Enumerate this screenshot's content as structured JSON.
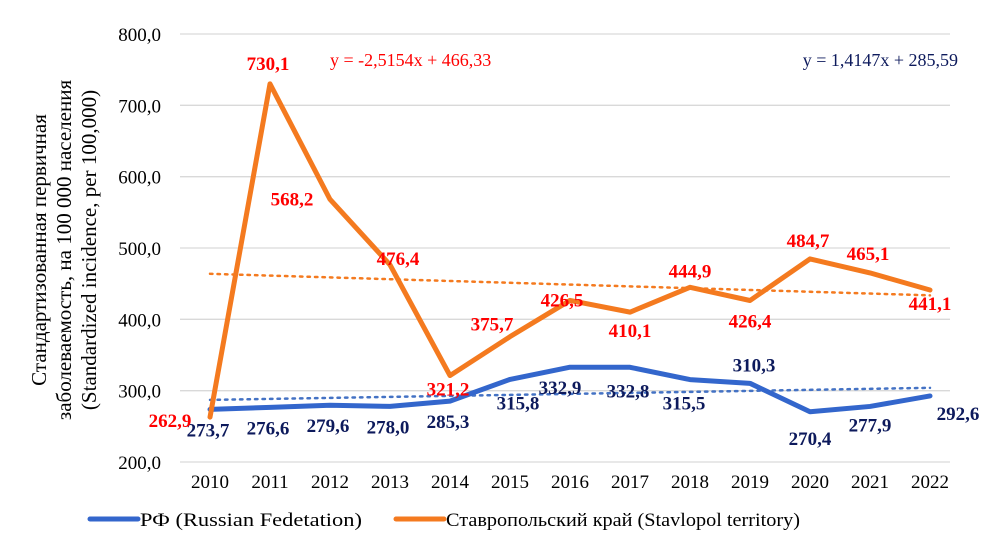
{
  "chart_data": {
    "type": "line",
    "title": "",
    "ylabel_lines": [
      "Стандартизованная первичная",
      "заболеваемость, на 100 000 населения",
      "(Standardized  incidence, per 100,000)"
    ],
    "xlabel": "",
    "ylim": [
      200,
      800
    ],
    "yticks": [
      "200,0",
      "300,0",
      "400,0",
      "500,0",
      "600,0",
      "700,0",
      "800,0"
    ],
    "ytick_values": [
      200,
      300,
      400,
      500,
      600,
      700,
      800
    ],
    "grid": true,
    "categories": [
      "2010",
      "2011",
      "2012",
      "2013",
      "2014",
      "2015",
      "2016",
      "2017",
      "2018",
      "2019",
      "2020",
      "2021",
      "2022"
    ],
    "series": [
      {
        "name": "РФ (Russian Fedetation)",
        "color": "#3366cc",
        "label_color": "#0d1a5c",
        "values": [
          273.7,
          276.6,
          279.6,
          278.0,
          285.3,
          315.8,
          332.9,
          332.8,
          315.5,
          310.3,
          270.4,
          277.9,
          292.6
        ],
        "labels": [
          "273,7",
          "276,6",
          "279,6",
          "278,0",
          "285,3",
          "315,8",
          "332,9",
          "332,8",
          "315,5",
          "310,3",
          "270,4",
          "277,9",
          "292,6"
        ],
        "trendline": {
          "slope": 1.4147,
          "intercept": 285.59,
          "equation": "y = 1,4147x + 285,59",
          "equation_color": "#0d1a5c"
        }
      },
      {
        "name": "Ставропольский край (Stavlopol territory)",
        "color": "#f47a1f",
        "label_color": "#ff0000",
        "values": [
          262.9,
          730.1,
          568.2,
          476.4,
          321.2,
          375.7,
          426.5,
          410.1,
          444.9,
          426.4,
          484.7,
          465.1,
          441.1
        ],
        "labels": [
          "262,9",
          "730,1",
          "568,2",
          "476,4",
          "321,2",
          "375,7",
          "426,5",
          "410,1",
          "444,9",
          "426,4",
          "484,7",
          "465,1",
          "441,1"
        ],
        "trendline": {
          "slope": -2.5154,
          "intercept": 466.33,
          "equation": "y = -2,5154x + 466,33",
          "equation_color": "#ff0000"
        }
      }
    ],
    "legend_position": "bottom"
  }
}
